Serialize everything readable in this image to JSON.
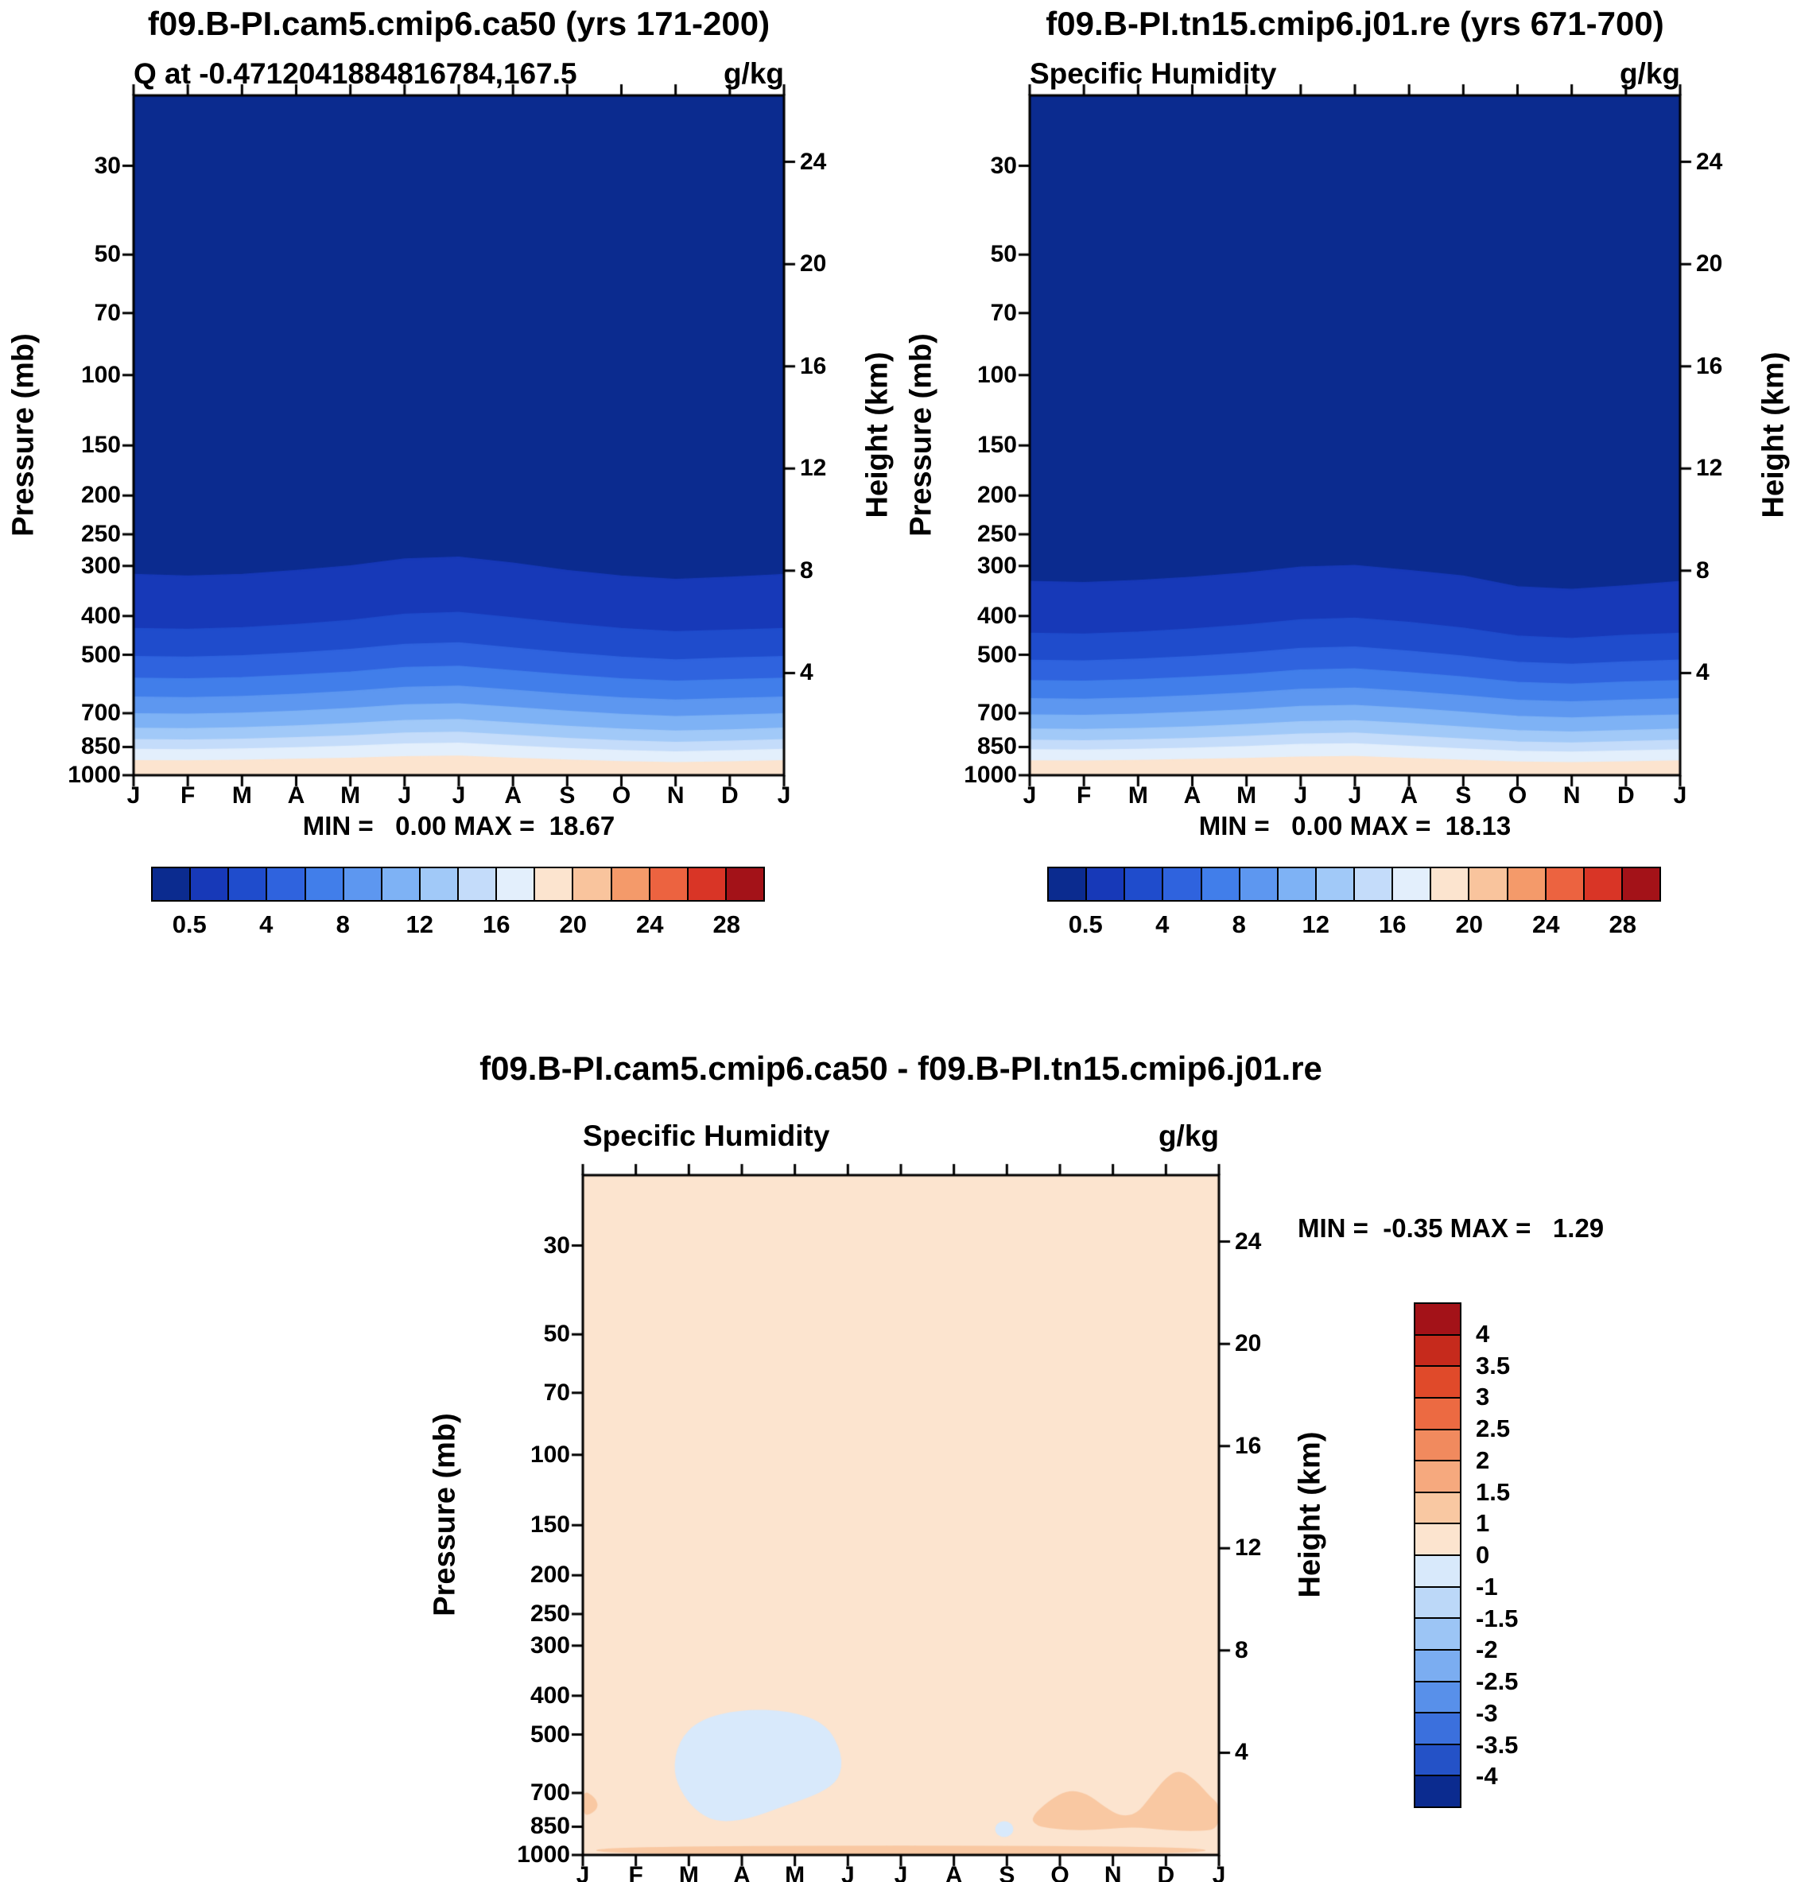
{
  "palette_blue_red_16": [
    "#0b2b8f",
    "#1739b8",
    "#1f4ccc",
    "#2f63de",
    "#417eea",
    "#5d97f0",
    "#7eb2f5",
    "#a1c9f8",
    "#c4dcfa",
    "#e3effc",
    "#fce4cf",
    "#f9c49d",
    "#f49a6a",
    "#ec6340",
    "#d93526",
    "#a31218"
  ],
  "palette_diff_16": [
    "#a31218",
    "#c62a1c",
    "#e04a2a",
    "#ec6a42",
    "#f18a5e",
    "#f6a97e",
    "#f9c8a2",
    "#fce4cf",
    "#d8e9fb",
    "#bcd8f8",
    "#9cc5f5",
    "#7badf1",
    "#5890ea",
    "#3b70dd",
    "#2452c7",
    "#0b2b8f"
  ],
  "chart_data": [
    {
      "type": "filled-contour",
      "title": "f09.B-PI.cam5.cmip6.ca50 (yrs 171-200)",
      "subtitle_left": "Q at -0.4712041884816784,167.5",
      "units": "g/kg",
      "stats_text": "MIN =   0.00 MAX =  18.67",
      "min": 0.0,
      "max": 18.67,
      "ylabel_left": "Pressure (mb)",
      "ylabel_right": "Height (km)",
      "x_ticks": [
        "J",
        "F",
        "M",
        "A",
        "M",
        "J",
        "J",
        "A",
        "S",
        "O",
        "N",
        "D",
        "J"
      ],
      "pressure_ticks": [
        30,
        50,
        70,
        100,
        150,
        200,
        250,
        300,
        400,
        500,
        700,
        850,
        1000
      ],
      "height_ticks": [
        24,
        20,
        16,
        12,
        8,
        4
      ],
      "p_top": 20,
      "p_bottom": 1000,
      "contour_levels": [
        0.5,
        2,
        4,
        6,
        8,
        10,
        12,
        14,
        16,
        18
      ],
      "contour_pressures": [
        [
          315,
          318,
          315,
          308,
          300,
          288,
          285,
          295,
          308,
          318,
          324,
          320,
          315
        ],
        [
          430,
          432,
          428,
          420,
          410,
          396,
          392,
          404,
          418,
          430,
          438,
          434,
          430
        ],
        [
          505,
          507,
          503,
          495,
          485,
          471,
          467,
          481,
          495,
          507,
          515,
          509,
          505
        ],
        [
          572,
          574,
          570,
          562,
          552,
          538,
          534,
          548,
          562,
          574,
          582,
          577,
          572
        ],
        [
          638,
          640,
          636,
          628,
          617,
          603,
          599,
          613,
          628,
          641,
          649,
          643,
          638
        ],
        [
          702,
          704,
          700,
          692,
          681,
          667,
          663,
          677,
          692,
          705,
          714,
          708,
          702
        ],
        [
          763,
          765,
          761,
          753,
          743,
          730,
          726,
          740,
          755,
          767,
          776,
          770,
          763
        ],
        [
          815,
          817,
          813,
          806,
          797,
          785,
          781,
          795,
          809,
          820,
          828,
          822,
          815
        ],
        [
          862,
          864,
          860,
          854,
          846,
          836,
          832,
          845,
          858,
          868,
          875,
          869,
          862
        ],
        [
          920,
          921,
          918,
          913,
          907,
          899,
          896,
          907,
          917,
          925,
          930,
          926,
          920
        ]
      ],
      "colorbar_labels": [
        "0.5",
        "4",
        "8",
        "12",
        "16",
        "20",
        "24",
        "28"
      ]
    },
    {
      "type": "filled-contour",
      "title": "f09.B-PI.tn15.cmip6.j01.re (yrs 671-700)",
      "subtitle_left": "Specific Humidity",
      "units": "g/kg",
      "stats_text": "MIN =   0.00 MAX =  18.13",
      "min": 0.0,
      "max": 18.13,
      "ylabel_left": "Pressure (mb)",
      "ylabel_right": "Height (km)",
      "x_ticks": [
        "J",
        "F",
        "M",
        "A",
        "M",
        "J",
        "J",
        "A",
        "S",
        "O",
        "N",
        "D",
        "J"
      ],
      "pressure_ticks": [
        30,
        50,
        70,
        100,
        150,
        200,
        250,
        300,
        400,
        500,
        700,
        850,
        1000
      ],
      "height_ticks": [
        24,
        20,
        16,
        12,
        8,
        4
      ],
      "p_top": 20,
      "p_bottom": 1000,
      "contour_levels": [
        0.5,
        2,
        4,
        6,
        8,
        10,
        12,
        14,
        16,
        18
      ],
      "contour_pressures": [
        [
          328,
          330,
          326,
          320,
          312,
          302,
          299,
          308,
          318,
          338,
          343,
          336,
          328
        ],
        [
          442,
          444,
          439,
          431,
          421,
          409,
          405,
          415,
          429,
          449,
          455,
          447,
          442
        ],
        [
          516,
          518,
          513,
          505,
          495,
          482,
          478,
          490,
          504,
          522,
          528,
          521,
          516
        ],
        [
          580,
          582,
          577,
          569,
          559,
          546,
          542,
          554,
          568,
          586,
          592,
          585,
          580
        ],
        [
          644,
          646,
          641,
          633,
          623,
          610,
          606,
          618,
          633,
          650,
          656,
          649,
          644
        ],
        [
          707,
          709,
          704,
          696,
          686,
          673,
          669,
          681,
          696,
          713,
          719,
          712,
          707
        ],
        [
          767,
          769,
          764,
          757,
          747,
          735,
          731,
          743,
          758,
          774,
          780,
          773,
          767
        ],
        [
          818,
          820,
          816,
          809,
          800,
          789,
          785,
          798,
          812,
          826,
          831,
          824,
          818
        ],
        [
          864,
          866,
          862,
          856,
          848,
          838,
          835,
          847,
          860,
          872,
          876,
          870,
          864
        ],
        [
          921,
          922,
          919,
          914,
          908,
          901,
          898,
          908,
          918,
          927,
          930,
          926,
          921
        ]
      ],
      "colorbar_labels": [
        "0.5",
        "4",
        "8",
        "12",
        "16",
        "20",
        "24",
        "28"
      ]
    },
    {
      "type": "filled-contour-diff",
      "title": "f09.B-PI.cam5.cmip6.ca50 - f09.B-PI.tn15.cmip6.j01.re",
      "subtitle_left": "Specific Humidity",
      "units": "g/kg",
      "stats_text": "MIN =  -0.35 MAX =   1.29",
      "min": -0.35,
      "max": 1.29,
      "ylabel_left": "Pressure (mb)",
      "ylabel_right": "Height (km)",
      "x_ticks": [
        "J",
        "F",
        "M",
        "A",
        "M",
        "J",
        "J",
        "A",
        "S",
        "O",
        "N",
        "D",
        "J"
      ],
      "pressure_ticks": [
        30,
        50,
        70,
        100,
        150,
        200,
        250,
        300,
        400,
        500,
        700,
        850,
        1000
      ],
      "height_ticks": [
        24,
        20,
        16,
        12,
        8,
        4
      ],
      "p_top": 20,
      "p_bottom": 1000,
      "background_band": "0 to 1",
      "patches": [
        {
          "band": "-1 to 0",
          "color_index": 8,
          "points_month_pressure": [
            [
              1.7,
              620
            ],
            [
              1.8,
              520
            ],
            [
              2.2,
              458
            ],
            [
              3.0,
              432
            ],
            [
              3.9,
              436
            ],
            [
              4.6,
              470
            ],
            [
              4.9,
              560
            ],
            [
              4.85,
              645
            ],
            [
              4.5,
              700
            ],
            [
              3.8,
              755
            ],
            [
              3.1,
              815
            ],
            [
              2.55,
              828
            ],
            [
              2.2,
              788
            ],
            [
              1.9,
              715
            ]
          ]
        },
        {
          "band": "-1 to 0",
          "color_index": 8,
          "ellipse": [
            7.95,
            862,
            0.17,
            10
          ]
        },
        {
          "band": "1 to 1.5",
          "color_index": 6,
          "points_month_pressure": [
            [
              0,
              688
            ],
            [
              0.22,
              715
            ],
            [
              0.3,
              755
            ],
            [
              0.18,
              788
            ],
            [
              0,
              798
            ]
          ]
        },
        {
          "band": "1 to 1.5",
          "color_index": 6,
          "points_month_pressure": [
            [
              8.45,
              805
            ],
            [
              8.8,
              730
            ],
            [
              9.15,
              688
            ],
            [
              9.5,
              700
            ],
            [
              9.85,
              760
            ],
            [
              10.15,
              800
            ],
            [
              10.45,
              790
            ],
            [
              10.7,
              718
            ],
            [
              11.0,
              640
            ],
            [
              11.25,
              612
            ],
            [
              11.55,
              648
            ],
            [
              11.85,
              718
            ],
            [
              12,
              745
            ],
            [
              12,
              862
            ],
            [
              11.6,
              872
            ],
            [
              11.0,
              868
            ],
            [
              10.4,
              850
            ],
            [
              9.9,
              862
            ],
            [
              9.4,
              868
            ],
            [
              8.9,
              862
            ],
            [
              8.55,
              845
            ]
          ]
        },
        {
          "band": "1 to 1.5",
          "color_index": 6,
          "points_month_pressure": [
            [
              0.25,
              948
            ],
            [
              11.75,
              948
            ],
            [
              11.75,
              1000
            ],
            [
              0.25,
              1000
            ]
          ]
        }
      ],
      "colorbar_labels": [
        "4",
        "3.5",
        "3",
        "2.5",
        "2",
        "1.5",
        "1",
        "0",
        "-1",
        "-1.5",
        "-2",
        "-2.5",
        "-3",
        "-3.5",
        "-4"
      ]
    }
  ]
}
